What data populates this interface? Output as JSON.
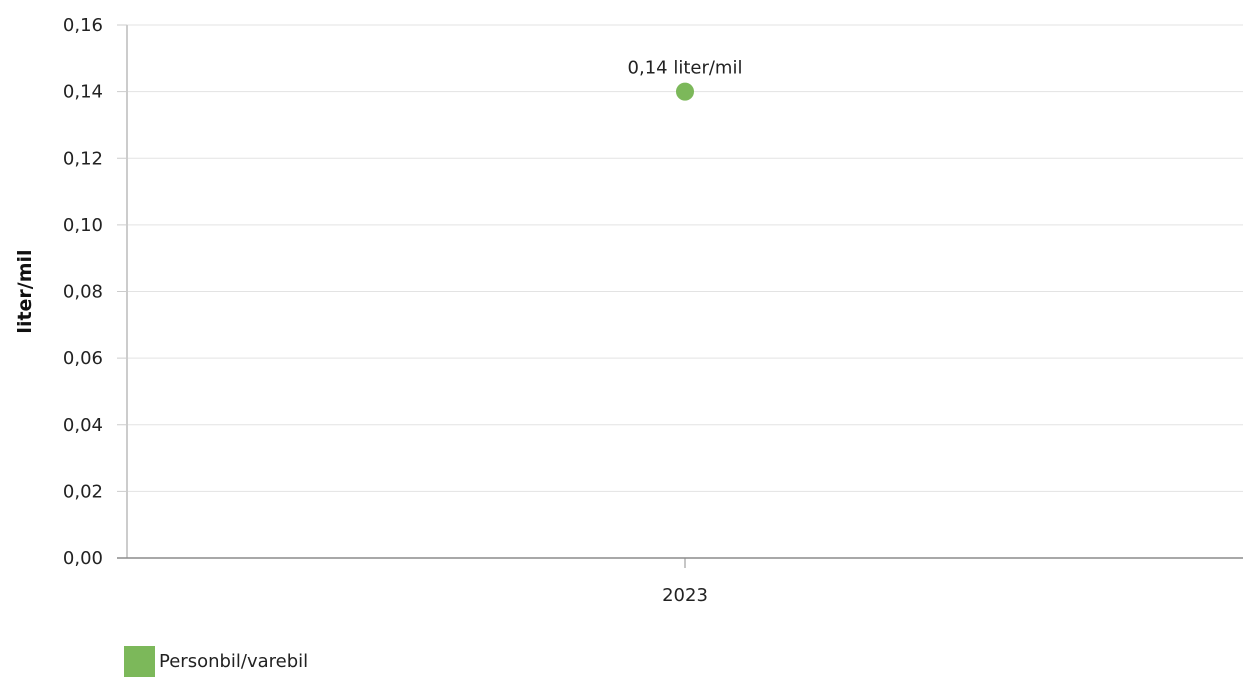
{
  "chart_data": {
    "type": "scatter",
    "ylabel": "liter/mil",
    "xlabel": "",
    "categories": [
      "2023"
    ],
    "y_ticks": [
      "0,00",
      "0,02",
      "0,04",
      "0,06",
      "0,08",
      "0,10",
      "0,12",
      "0,14",
      "0,16"
    ],
    "ylim": [
      0,
      0.16
    ],
    "grid": true,
    "legend_position": "bottom-left",
    "series": [
      {
        "name": "Personbil/varebil",
        "color": "#7cb85a",
        "values": [
          0.14
        ],
        "data_labels": [
          "0,14 liter/mil"
        ]
      }
    ]
  }
}
